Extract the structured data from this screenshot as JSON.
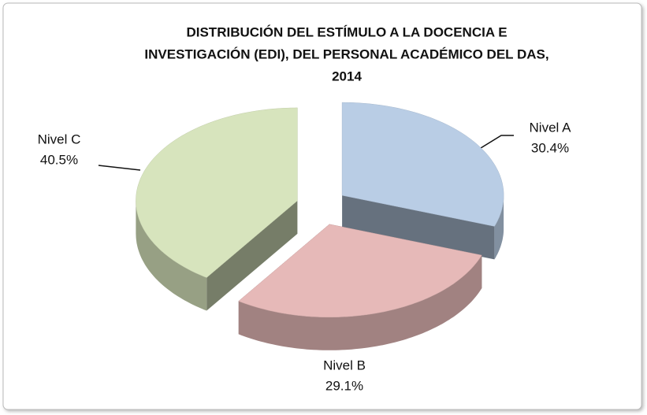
{
  "chart_data": {
    "type": "pie3d",
    "title": [
      "DISTRIBUCIÓN DEL ESTÍMULO A LA DOCENCIA E",
      "INVESTIGACIÓN (EDI), DEL PERSONAL ACADÉMICO DEL DAS,",
      "2014"
    ],
    "categories": [
      "Nivel A",
      "Nivel B",
      "Nivel C"
    ],
    "values": [
      30.4,
      29.1,
      40.5
    ],
    "value_labels": [
      "30.4%",
      "29.1%",
      "40.5%"
    ],
    "colors": [
      "#b9cde5",
      "#e6b9b8",
      "#d7e4bd"
    ]
  }
}
